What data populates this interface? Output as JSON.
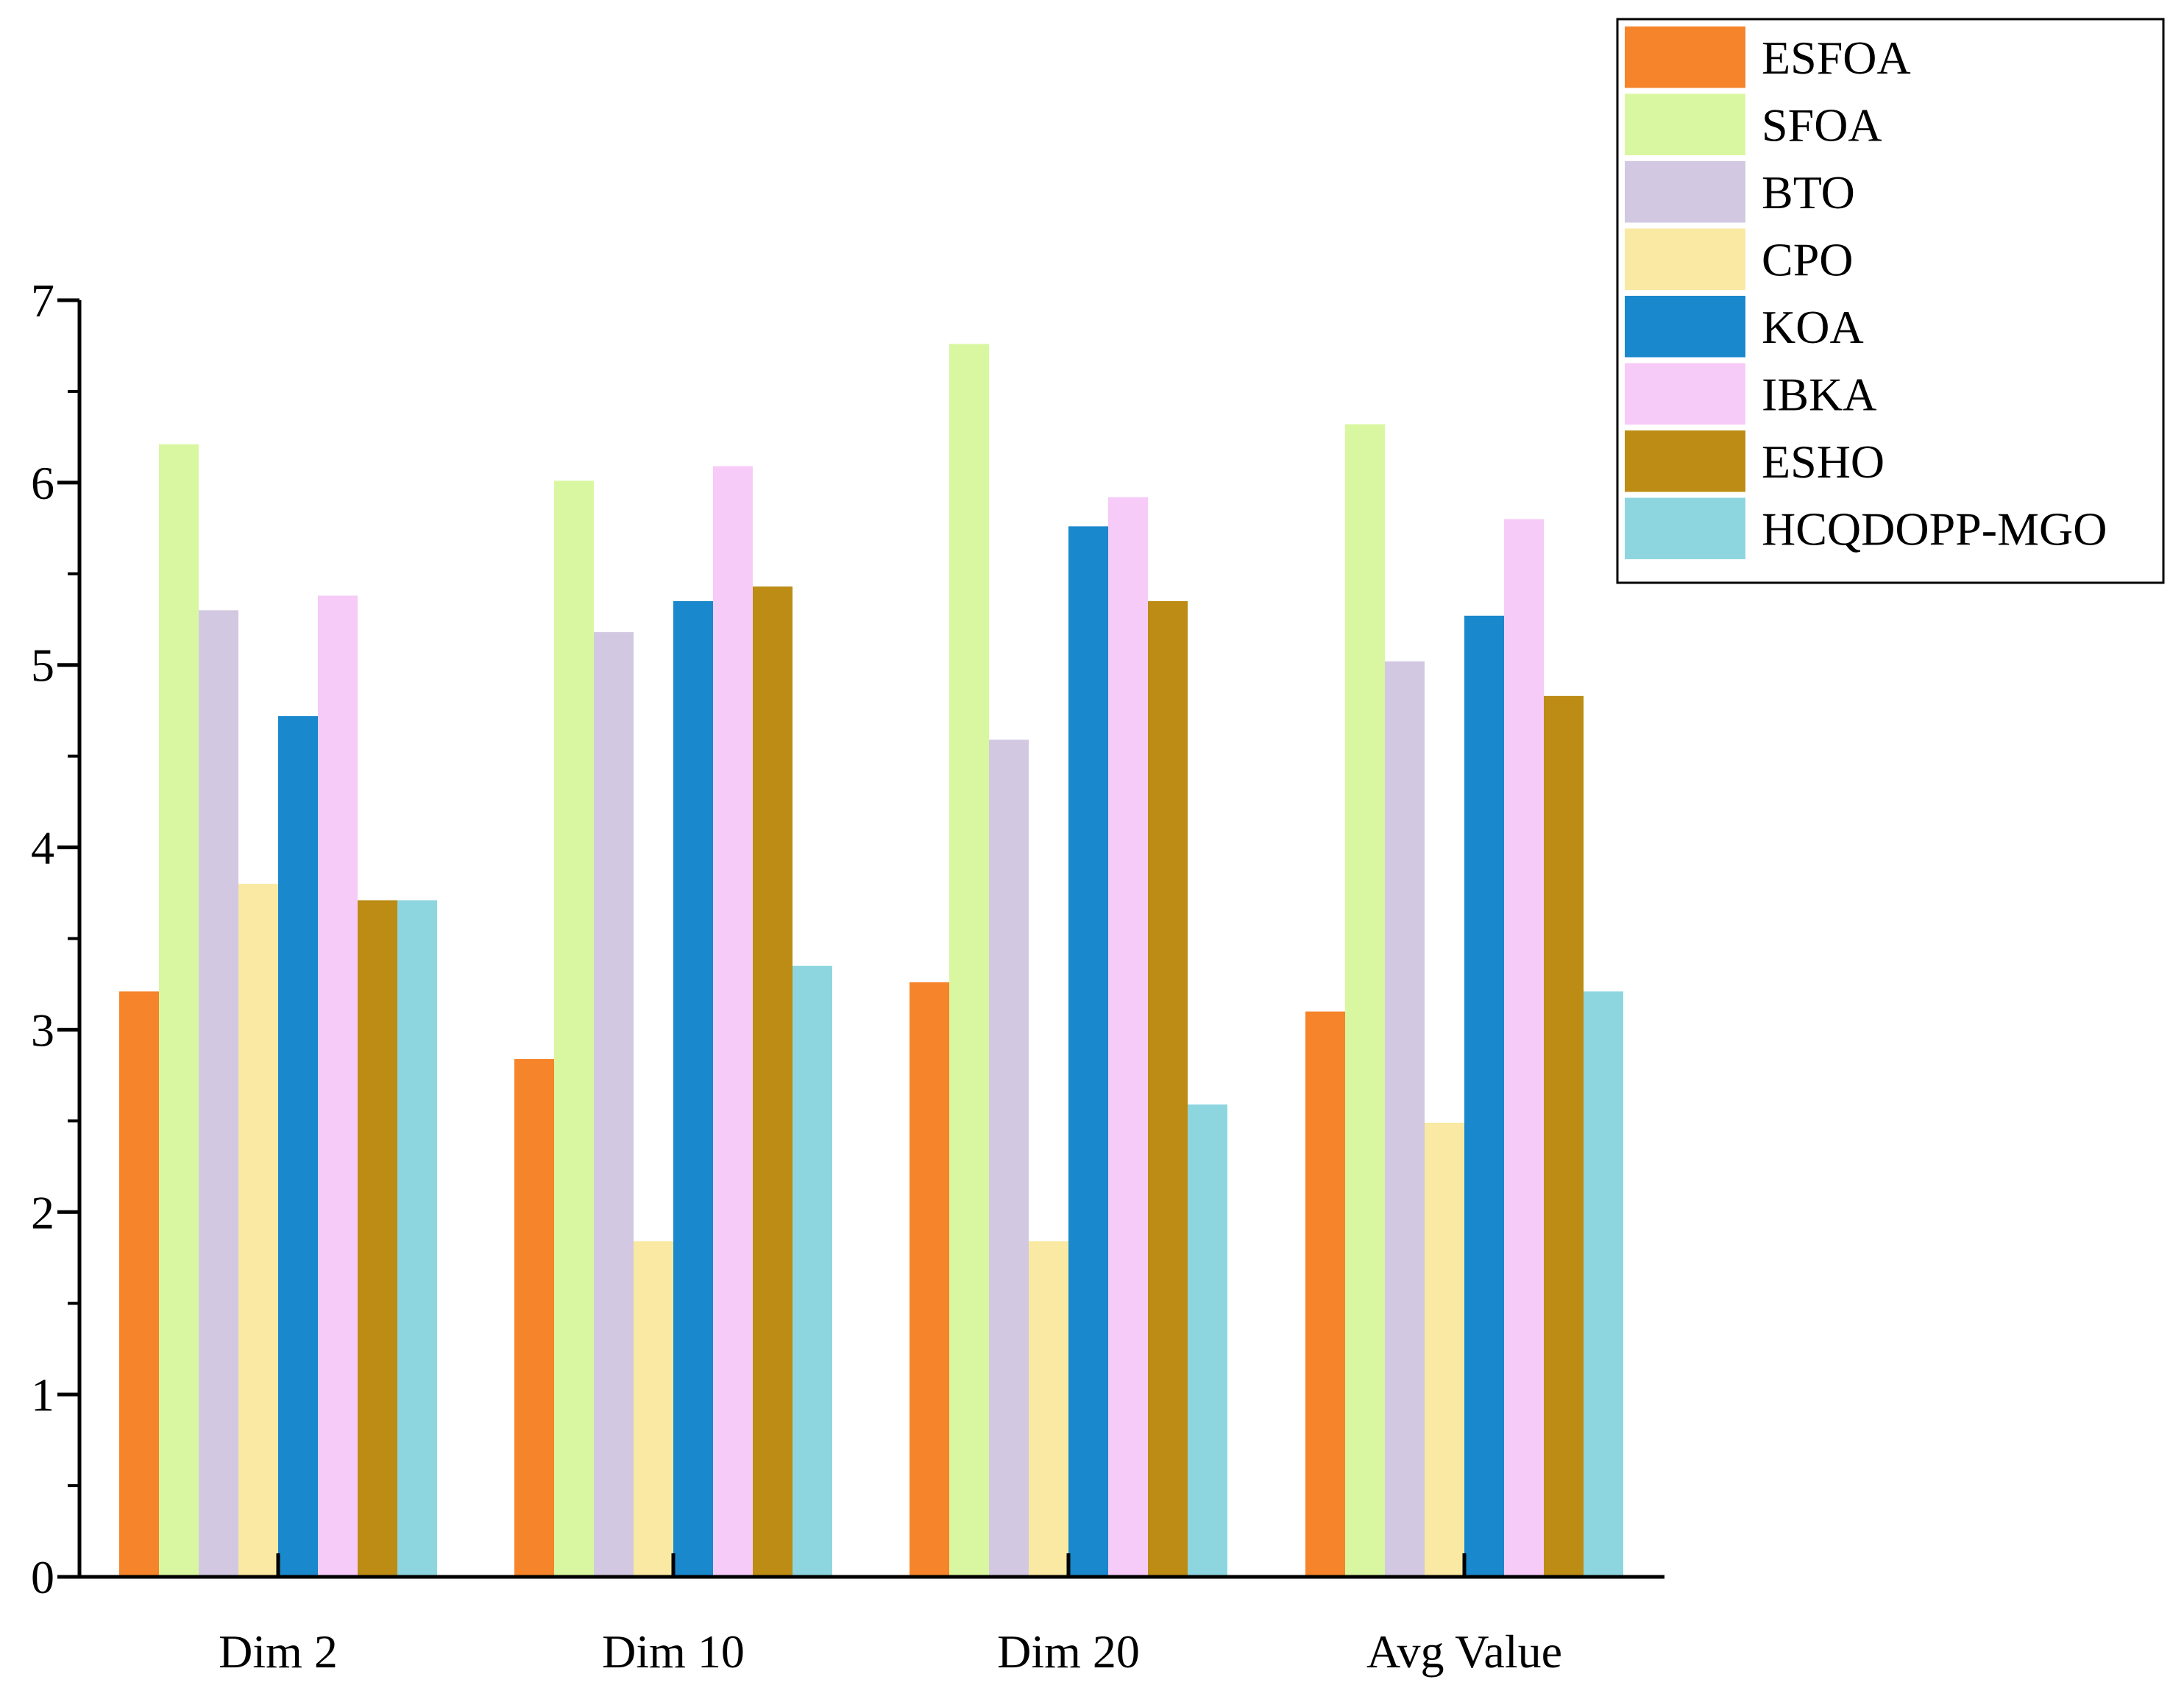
{
  "chart_data": {
    "type": "bar",
    "title": "",
    "xlabel": "",
    "ylabel": "",
    "ylim": [
      0,
      7
    ],
    "yticks": [
      0,
      1,
      2,
      3,
      4,
      5,
      6,
      7
    ],
    "grid": false,
    "legend_position": "top-right",
    "categories": [
      "Dim 2",
      "Dim 10",
      "Dim 20",
      "Avg Value"
    ],
    "series": [
      {
        "name": "ESFOA",
        "color": "#F5842A",
        "values": [
          3.21,
          2.84,
          3.26,
          3.1
        ]
      },
      {
        "name": "SFOA",
        "color": "#D9F7A0",
        "values": [
          6.21,
          6.01,
          6.76,
          6.32
        ]
      },
      {
        "name": "BTO",
        "color": "#D2C8E2",
        "values": [
          5.3,
          5.18,
          4.59,
          5.02
        ]
      },
      {
        "name": "CPO",
        "color": "#F9E9A2",
        "values": [
          3.8,
          1.84,
          1.84,
          2.49
        ]
      },
      {
        "name": "KOA",
        "color": "#1A88CC",
        "values": [
          4.72,
          5.35,
          5.76,
          5.27
        ]
      },
      {
        "name": "IBKA",
        "color": "#F7CBF7",
        "values": [
          5.38,
          6.09,
          5.92,
          5.8
        ]
      },
      {
        "name": "ESHO",
        "color": "#BC8C14",
        "values": [
          3.71,
          5.43,
          5.35,
          4.83
        ]
      },
      {
        "name": "HCQDOPP-MGO",
        "color": "#8DD6E0",
        "values": [
          3.71,
          3.35,
          2.59,
          3.21
        ]
      }
    ]
  }
}
